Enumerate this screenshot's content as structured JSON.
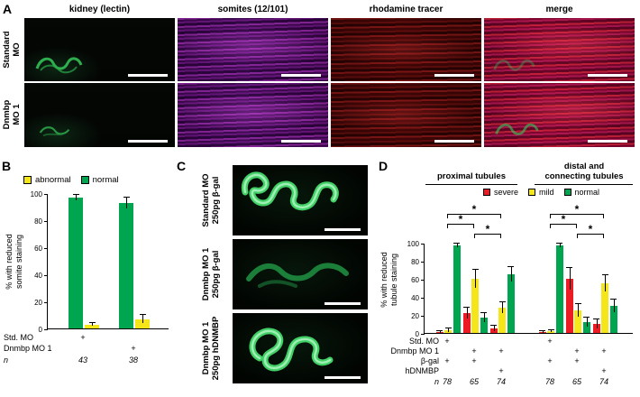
{
  "figure": {
    "panelA": {
      "label": "A",
      "column_headers": [
        "kidney (lectin)",
        "somites (12/101)",
        "rhodamine tracer",
        "merge"
      ],
      "rows": [
        {
          "line1": "Standard",
          "line2": "MO"
        },
        {
          "line1": "Dnmbp",
          "line2": "MO 1"
        }
      ]
    },
    "panelB": {
      "label": "B",
      "legend": [
        {
          "label": "abnormal",
          "color": "#F5E61A"
        },
        {
          "label": "normal",
          "color": "#00A550"
        }
      ],
      "ylabel_line1": "% with reduced",
      "ylabel_line2": "somite staining",
      "table": {
        "rows": [
          {
            "label": "Std. MO",
            "italic": false,
            "cells": [
              "+",
              ""
            ]
          },
          {
            "label": "Dnmbp MO 1",
            "italic": false,
            "cells": [
              "",
              "+"
            ]
          },
          {
            "label": "n",
            "italic": true,
            "cells": [
              "43",
              "38"
            ]
          }
        ]
      }
    },
    "panelC": {
      "label": "C",
      "images": [
        {
          "line1": "Standard MO",
          "line2": "250pg β-gal"
        },
        {
          "line1": "Dnmbp MO 1",
          "line2": "250pg β-gal"
        },
        {
          "line1": "Dnmbp MO 1",
          "line2": "250pg hDNMBP"
        }
      ]
    },
    "panelD": {
      "label": "D",
      "group_headers": [
        {
          "line1": "proximal tubules",
          "line2": ""
        },
        {
          "line1": "distal and",
          "line2": "connecting tubules"
        }
      ],
      "legend": [
        {
          "label": "severe",
          "color": "#EC1C24"
        },
        {
          "label": "mild",
          "color": "#F5E61A"
        },
        {
          "label": "normal",
          "color": "#00A550"
        }
      ],
      "ylabel_line1": "% with reduced",
      "ylabel_line2": "tubule staining",
      "table": {
        "rows": [
          {
            "label": "Std. MO",
            "italic": false,
            "cells": [
              "+",
              "",
              "",
              "+",
              "",
              ""
            ]
          },
          {
            "label": "Dnmbp MO 1",
            "italic": false,
            "cells": [
              "",
              "+",
              "+",
              "",
              "+",
              "+"
            ]
          },
          {
            "label": "β-gal",
            "italic": false,
            "cells": [
              "+",
              "+",
              "",
              "+",
              "+",
              ""
            ]
          },
          {
            "label": "hDNMBP",
            "italic": false,
            "cells": [
              "",
              "",
              "+",
              "",
              "",
              "+"
            ]
          },
          {
            "label": "n",
            "italic": true,
            "cells": [
              "78",
              "65",
              "74",
              "78",
              "65",
              "74"
            ]
          }
        ]
      }
    }
  },
  "chart_data": [
    {
      "type": "bar",
      "title": "",
      "ylabel": "% with reduced somite staining",
      "ylim": [
        0,
        100
      ],
      "yticks": [
        0,
        20,
        40,
        60,
        80,
        100
      ],
      "categories": [
        "Std. MO",
        "Dnmbp MO 1"
      ],
      "series": [
        {
          "name": "normal",
          "color": "#00A550",
          "values": [
            97,
            93
          ],
          "errors": [
            2,
            4
          ]
        },
        {
          "name": "abnormal",
          "color": "#F5E61A",
          "values": [
            3,
            7
          ],
          "errors": [
            1,
            3
          ]
        }
      ],
      "n": [
        43,
        38
      ],
      "legend_position": "top"
    },
    {
      "type": "bar",
      "title": "proximal tubules",
      "ylabel": "% with reduced tubule staining",
      "ylim": [
        0,
        100
      ],
      "yticks": [
        0,
        20,
        40,
        60,
        80,
        100
      ],
      "categories": [
        "Std. MO + β-gal",
        "Dnmbp MO 1 + β-gal",
        "Dnmbp MO 1 + hDNMBP"
      ],
      "series": [
        {
          "name": "severe",
          "color": "#EC1C24",
          "values": [
            1,
            22,
            5
          ],
          "errors": [
            1,
            6,
            3
          ]
        },
        {
          "name": "mild",
          "color": "#F5E61A",
          "values": [
            3,
            60,
            28
          ],
          "errors": [
            2,
            10,
            6
          ]
        },
        {
          "name": "normal",
          "color": "#00A550",
          "values": [
            97,
            17,
            65
          ],
          "errors": [
            2,
            5,
            8
          ]
        }
      ],
      "n": [
        78,
        65,
        74
      ],
      "significance": [
        {
          "a": 0,
          "b": 1,
          "level": 1,
          "label": "*"
        },
        {
          "a": 1,
          "b": 2,
          "level": 0,
          "label": "*"
        },
        {
          "a": 0,
          "b": 2,
          "level": 2,
          "label": "*"
        }
      ],
      "legend_position": "top"
    },
    {
      "type": "bar",
      "title": "distal and connecting tubules",
      "ylabel": "% with reduced tubule staining",
      "ylim": [
        0,
        100
      ],
      "yticks": [
        0,
        20,
        40,
        60,
        80,
        100
      ],
      "categories": [
        "Std. MO + β-gal",
        "Dnmbp MO 1 + β-gal",
        "Dnmbp MO 1 + hDNMBP"
      ],
      "series": [
        {
          "name": "severe",
          "color": "#EC1C24",
          "values": [
            1,
            60,
            10
          ],
          "errors": [
            1,
            12,
            5
          ]
        },
        {
          "name": "mild",
          "color": "#F5E61A",
          "values": [
            2,
            25,
            55
          ],
          "errors": [
            1,
            7,
            9
          ]
        },
        {
          "name": "normal",
          "color": "#00A550",
          "values": [
            97,
            12,
            30
          ],
          "errors": [
            2,
            5,
            7
          ]
        }
      ],
      "n": [
        78,
        65,
        74
      ],
      "significance": [
        {
          "a": 0,
          "b": 1,
          "level": 1,
          "label": "*"
        },
        {
          "a": 1,
          "b": 2,
          "level": 0,
          "label": "*"
        },
        {
          "a": 0,
          "b": 2,
          "level": 2,
          "label": "*"
        }
      ],
      "legend_position": "top"
    }
  ]
}
